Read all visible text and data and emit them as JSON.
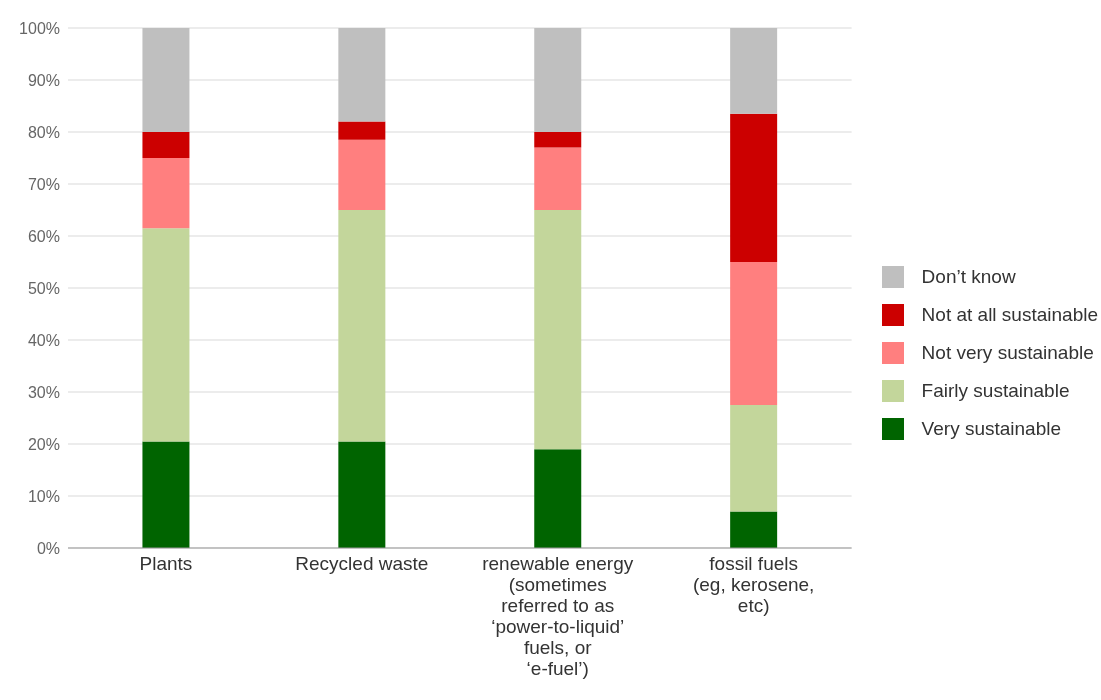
{
  "chart_data": {
    "type": "bar",
    "stacked": true,
    "categories": [
      "Plants",
      "Recycled waste",
      "renewable energy (sometimes referred to as ‘power-to-liquid’ fuels, or ‘e-fuel’)",
      "fossil fuels (eg, kerosene, etc)"
    ],
    "series": [
      {
        "name": "Very sustainable",
        "color": "#006400",
        "values": [
          20.5,
          20.5,
          19,
          7
        ]
      },
      {
        "name": "Fairly sustainable",
        "color": "#c3d69b",
        "values": [
          41,
          44.5,
          46,
          20.5
        ]
      },
      {
        "name": "Not very sustainable",
        "color": "#ff7f7f",
        "values": [
          13.5,
          13.5,
          12,
          27.5
        ]
      },
      {
        "name": "Not at all sustainable",
        "color": "#cc0000",
        "values": [
          5,
          3.5,
          3,
          28.5
        ]
      },
      {
        "name": "Don’t know",
        "color": "#bfbfbf",
        "values": [
          20,
          18,
          20,
          16.5
        ]
      }
    ],
    "ylim": [
      0,
      100
    ],
    "yticks": [
      {
        "value": 0,
        "label": "0%"
      },
      {
        "value": 10,
        "label": "10%"
      },
      {
        "value": 20,
        "label": "20%"
      },
      {
        "value": 30,
        "label": "30%"
      },
      {
        "value": 40,
        "label": "40%"
      },
      {
        "value": 50,
        "label": "50%"
      },
      {
        "value": 60,
        "label": "60%"
      },
      {
        "value": 70,
        "label": "70%"
      },
      {
        "value": 80,
        "label": "80%"
      },
      {
        "value": 90,
        "label": "90%"
      },
      {
        "value": 100,
        "label": "100%"
      }
    ],
    "grid": "y",
    "legend": "right"
  }
}
